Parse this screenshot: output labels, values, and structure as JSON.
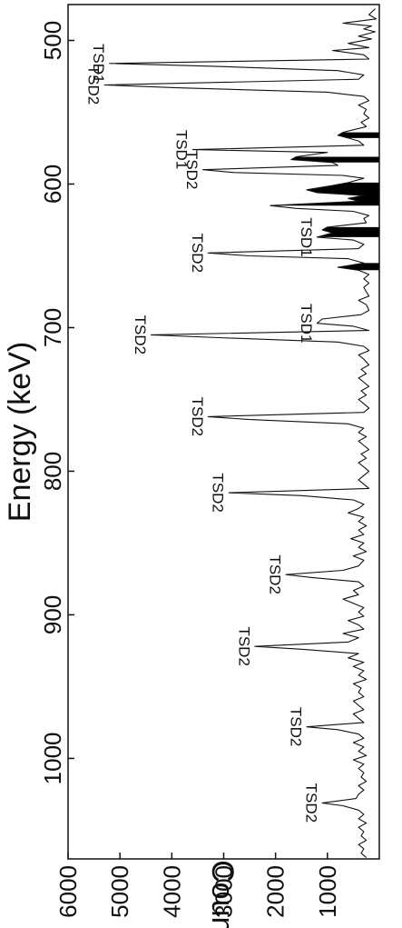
{
  "chart_data": {
    "type": "line",
    "xlabel": "Energy (keV)",
    "ylabel": "Counts",
    "xlim": [
      475,
      1070
    ],
    "ylim": [
      0,
      6000
    ],
    "x_ticks": [
      500,
      600,
      700,
      800,
      900,
      1000
    ],
    "y_ticks": [
      1000,
      2000,
      3000,
      4000,
      5000,
      6000
    ],
    "grid": false,
    "colors": {
      "line": "#111111",
      "fill": "#000000"
    },
    "series": [
      {
        "points": [
          [
            478,
            80
          ],
          [
            482,
            200
          ],
          [
            485,
            60
          ],
          [
            488,
            700
          ],
          [
            490,
            150
          ],
          [
            492,
            300
          ],
          [
            494,
            80
          ],
          [
            497,
            400
          ],
          [
            499,
            150
          ],
          [
            502,
            600
          ],
          [
            505,
            200
          ],
          [
            507,
            900
          ],
          [
            510,
            300
          ],
          [
            513,
            200
          ],
          [
            516,
            5200
          ],
          [
            518,
            3200
          ],
          [
            521,
            800
          ],
          [
            524,
            300
          ],
          [
            527,
            400
          ],
          [
            531,
            5300
          ],
          [
            533,
            3900
          ],
          [
            536,
            1000
          ],
          [
            539,
            300
          ],
          [
            542,
            200
          ],
          [
            545,
            400
          ],
          [
            548,
            250
          ],
          [
            551,
            300
          ],
          [
            554,
            200
          ],
          [
            557,
            350
          ],
          [
            560,
            250
          ],
          [
            564,
            700
          ],
          [
            566,
            800
          ],
          [
            568,
            600
          ],
          [
            570,
            400
          ],
          [
            573,
            300
          ],
          [
            576,
            3600
          ],
          [
            578,
            1000
          ],
          [
            581,
            1600
          ],
          [
            583,
            1700
          ],
          [
            585,
            900
          ],
          [
            587,
            800
          ],
          [
            590,
            3400
          ],
          [
            592,
            2800
          ],
          [
            594,
            700
          ],
          [
            596,
            300
          ],
          [
            599,
            600
          ],
          [
            601,
            900
          ],
          [
            604,
            1400
          ],
          [
            606,
            1200
          ],
          [
            608,
            300
          ],
          [
            610,
            600
          ],
          [
            612,
            400
          ],
          [
            615,
            2100
          ],
          [
            617,
            1600
          ],
          [
            619,
            500
          ],
          [
            622,
            200
          ],
          [
            624,
            300
          ],
          [
            627,
            250
          ],
          [
            630,
            1000
          ],
          [
            632,
            1100
          ],
          [
            634,
            900
          ],
          [
            637,
            1200
          ],
          [
            639,
            500
          ],
          [
            642,
            300
          ],
          [
            645,
            400
          ],
          [
            648,
            3300
          ],
          [
            650,
            2500
          ],
          [
            652,
            600
          ],
          [
            655,
            300
          ],
          [
            658,
            800
          ],
          [
            660,
            400
          ],
          [
            663,
            200
          ],
          [
            666,
            300
          ],
          [
            669,
            200
          ],
          [
            672,
            300
          ],
          [
            675,
            250
          ],
          [
            678,
            200
          ],
          [
            681,
            400
          ],
          [
            684,
            250
          ],
          [
            688,
            200
          ],
          [
            691,
            350
          ],
          [
            694,
            1100
          ],
          [
            697,
            1200
          ],
          [
            699,
            500
          ],
          [
            702,
            200
          ],
          [
            705,
            4400
          ],
          [
            707,
            3100
          ],
          [
            710,
            800
          ],
          [
            713,
            300
          ],
          [
            716,
            200
          ],
          [
            719,
            400
          ],
          [
            722,
            300
          ],
          [
            726,
            200
          ],
          [
            729,
            350
          ],
          [
            732,
            250
          ],
          [
            735,
            400
          ],
          [
            738,
            300
          ],
          [
            741,
            200
          ],
          [
            744,
            350
          ],
          [
            747,
            250
          ],
          [
            750,
            400
          ],
          [
            753,
            300
          ],
          [
            756,
            200
          ],
          [
            759,
            300
          ],
          [
            762,
            3300
          ],
          [
            764,
            2500
          ],
          [
            767,
            600
          ],
          [
            770,
            300
          ],
          [
            773,
            400
          ],
          [
            776,
            250
          ],
          [
            779,
            400
          ],
          [
            782,
            300
          ],
          [
            785,
            200
          ],
          [
            788,
            350
          ],
          [
            791,
            250
          ],
          [
            794,
            400
          ],
          [
            797,
            300
          ],
          [
            800,
            200
          ],
          [
            803,
            300
          ],
          [
            806,
            400
          ],
          [
            809,
            300
          ],
          [
            812,
            200
          ],
          [
            815,
            2900
          ],
          [
            817,
            1500
          ],
          [
            820,
            500
          ],
          [
            823,
            300
          ],
          [
            826,
            400
          ],
          [
            829,
            600
          ],
          [
            832,
            300
          ],
          [
            835,
            400
          ],
          [
            838,
            250
          ],
          [
            841,
            400
          ],
          [
            844,
            300
          ],
          [
            847,
            550
          ],
          [
            850,
            300
          ],
          [
            853,
            400
          ],
          [
            856,
            250
          ],
          [
            859,
            500
          ],
          [
            862,
            300
          ],
          [
            866,
            400
          ],
          [
            869,
            700
          ],
          [
            872,
            1800
          ],
          [
            874,
            1300
          ],
          [
            877,
            400
          ],
          [
            880,
            300
          ],
          [
            883,
            500
          ],
          [
            886,
            400
          ],
          [
            889,
            700
          ],
          [
            892,
            500
          ],
          [
            895,
            300
          ],
          [
            898,
            400
          ],
          [
            901,
            300
          ],
          [
            904,
            600
          ],
          [
            907,
            400
          ],
          [
            910,
            300
          ],
          [
            913,
            700
          ],
          [
            916,
            400
          ],
          [
            919,
            600
          ],
          [
            922,
            2400
          ],
          [
            924,
            1500
          ],
          [
            927,
            400
          ],
          [
            930,
            600
          ],
          [
            933,
            300
          ],
          [
            936,
            500
          ],
          [
            939,
            300
          ],
          [
            942,
            400
          ],
          [
            945,
            250
          ],
          [
            948,
            500
          ],
          [
            951,
            350
          ],
          [
            954,
            400
          ],
          [
            957,
            300
          ],
          [
            960,
            500
          ],
          [
            963,
            400
          ],
          [
            966,
            300
          ],
          [
            969,
            500
          ],
          [
            972,
            400
          ],
          [
            975,
            300
          ],
          [
            978,
            1400
          ],
          [
            980,
            800
          ],
          [
            983,
            400
          ],
          [
            986,
            300
          ],
          [
            989,
            500
          ],
          [
            992,
            300
          ],
          [
            995,
            400
          ],
          [
            998,
            250
          ],
          [
            1001,
            500
          ],
          [
            1004,
            300
          ],
          [
            1007,
            400
          ],
          [
            1010,
            300
          ],
          [
            1013,
            350
          ],
          [
            1016,
            250
          ],
          [
            1019,
            400
          ],
          [
            1022,
            300
          ],
          [
            1025,
            400
          ],
          [
            1028,
            450
          ],
          [
            1031,
            1100
          ],
          [
            1033,
            700
          ],
          [
            1036,
            400
          ],
          [
            1039,
            300
          ],
          [
            1042,
            400
          ],
          [
            1045,
            250
          ],
          [
            1048,
            400
          ],
          [
            1051,
            300
          ],
          [
            1054,
            350
          ],
          [
            1057,
            250
          ],
          [
            1060,
            400
          ],
          [
            1063,
            300
          ],
          [
            1066,
            350
          ],
          [
            1069,
            250
          ]
        ],
        "filled_ranges": [
          [
            563,
            569
          ],
          [
            580,
            586
          ],
          [
            598,
            616
          ],
          [
            628,
            638
          ],
          [
            655,
            660
          ]
        ]
      }
    ],
    "annotations": [
      {
        "text": "TSD1",
        "x": 516,
        "y": 5200
      },
      {
        "text": "TSD2",
        "x": 531,
        "y": 5300
      },
      {
        "text": "TSD1",
        "x": 576,
        "y": 3600
      },
      {
        "text": "TSD2",
        "x": 590,
        "y": 3400
      },
      {
        "text": "TSD1",
        "x": 637,
        "y": 1200
      },
      {
        "text": "TSD2",
        "x": 648,
        "y": 3300
      },
      {
        "text": "TSD1",
        "x": 697,
        "y": 1200
      },
      {
        "text": "TSD2",
        "x": 705,
        "y": 4400
      },
      {
        "text": "TSD2",
        "x": 762,
        "y": 3300
      },
      {
        "text": "TSD2",
        "x": 815,
        "y": 2900
      },
      {
        "text": "TSD2",
        "x": 872,
        "y": 1800
      },
      {
        "text": "TSD2",
        "x": 922,
        "y": 2400
      },
      {
        "text": "TSD2",
        "x": 978,
        "y": 1400
      },
      {
        "text": "TSD2",
        "x": 1031,
        "y": 1100
      }
    ]
  }
}
